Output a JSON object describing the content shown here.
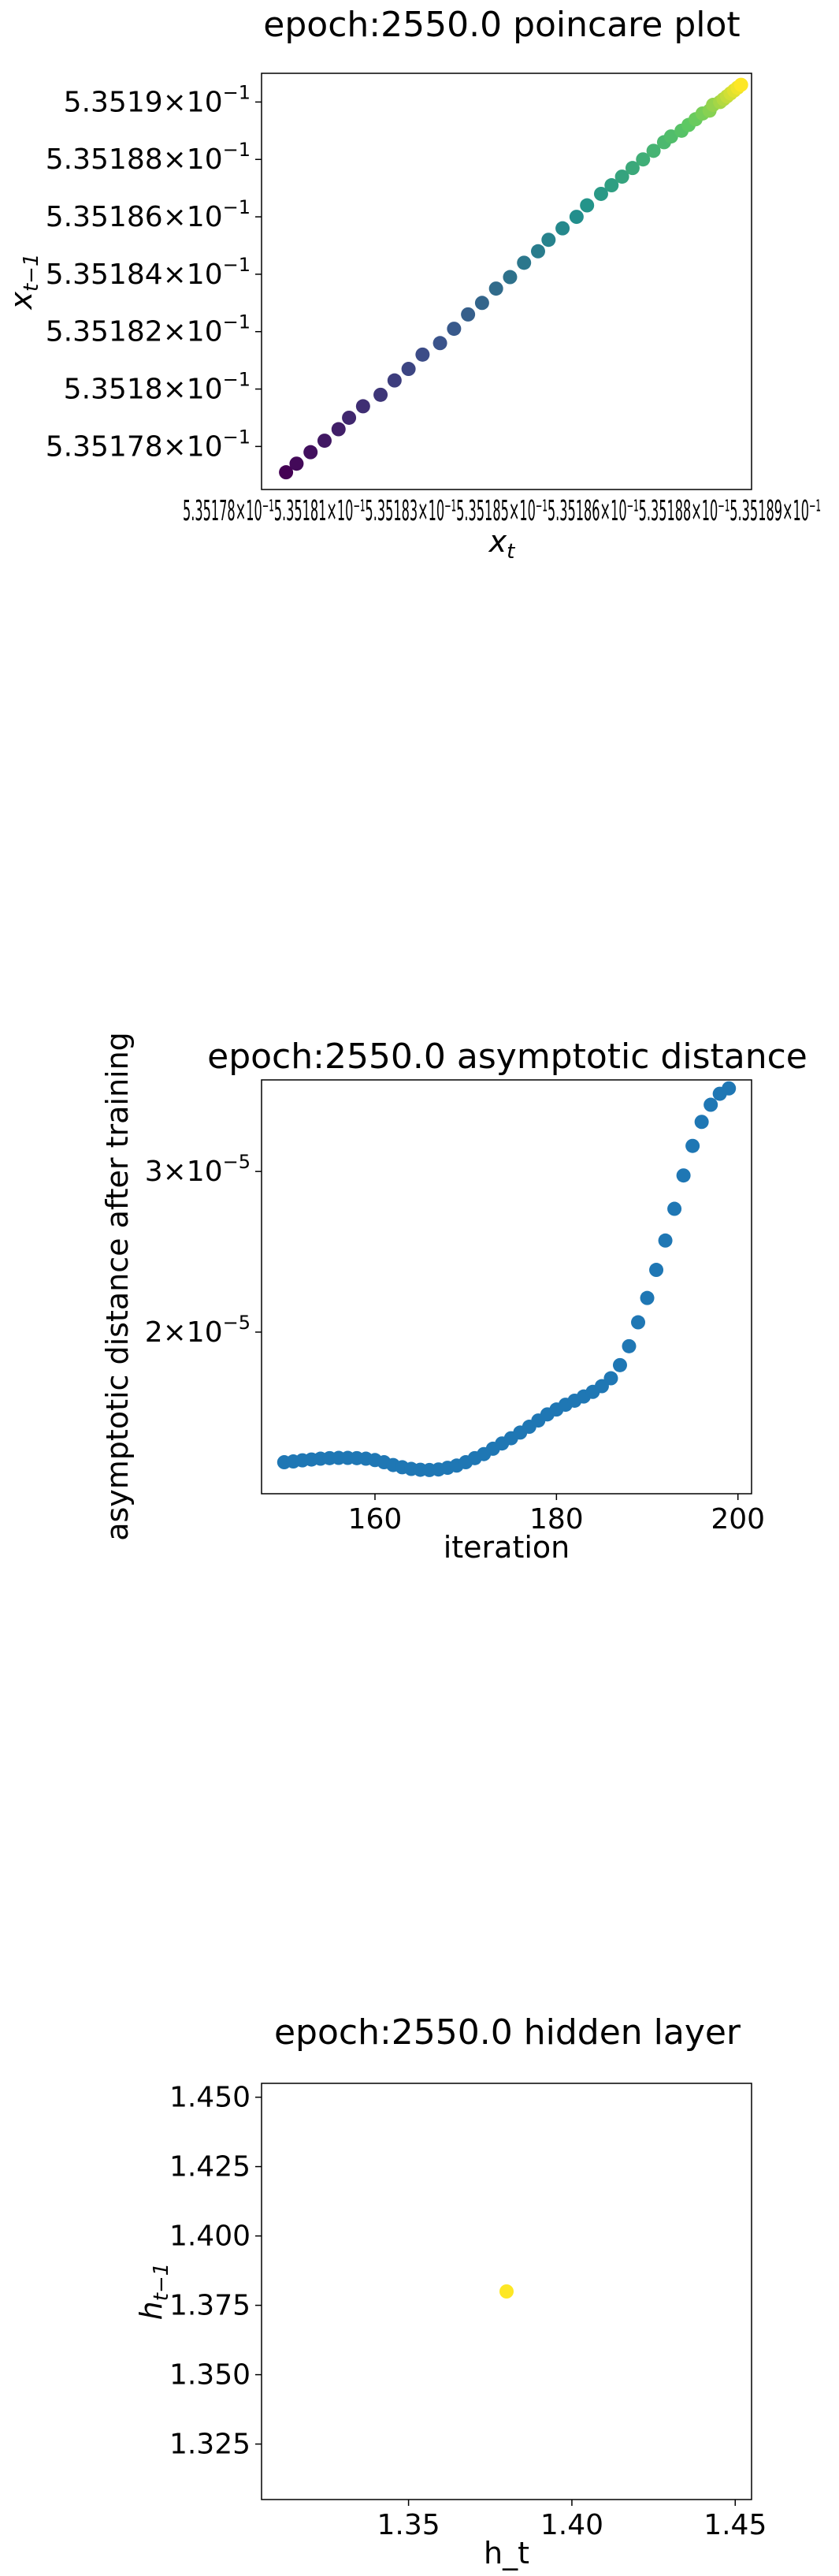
{
  "chart_data": [
    {
      "type": "scatter",
      "title": "epoch:2550.0 poincare plot",
      "xlabel_base": "x",
      "xlabel_sub": "t",
      "ylabel_base": "x",
      "ylabel_sub": "t−1",
      "colormap": [
        "#440154",
        "#3b528b",
        "#21918c",
        "#5ec962",
        "#fde725"
      ],
      "xlim": [
        0.5351772,
        0.5351912
      ],
      "ylim": [
        0.5351765,
        0.535191
      ],
      "x_ticks_text": "5.35178×10⁻¹5.35181×10⁻¹5.35183×10⁻¹5.35185×10⁻¹5.35186×10⁻¹5.35188×10⁻¹5.35189×10⁻¹",
      "y_ticks": [
        {
          "value": 0.53519,
          "mant": "5.3519",
          "exp": "−1"
        },
        {
          "value": 0.535188,
          "mant": "5.35188",
          "exp": "−1"
        },
        {
          "value": 0.535186,
          "mant": "5.35186",
          "exp": "−1"
        },
        {
          "value": 0.535184,
          "mant": "5.35184",
          "exp": "−1"
        },
        {
          "value": 0.535182,
          "mant": "5.35182",
          "exp": "−1"
        },
        {
          "value": 0.53518,
          "mant": "5.3518",
          "exp": "−1"
        },
        {
          "value": 0.535178,
          "mant": "5.35178",
          "exp": "−1"
        }
      ],
      "x": [
        0.5351779,
        0.5351782,
        0.5351786,
        0.535179,
        0.5351794,
        0.5351797,
        0.5351801,
        0.5351806,
        0.535181,
        0.5351814,
        0.5351818,
        0.5351823,
        0.5351827,
        0.5351831,
        0.5351835,
        0.5351839,
        0.5351843,
        0.5351847,
        0.5351851,
        0.5351854,
        0.5351858,
        0.5351862,
        0.5351865,
        0.5351869,
        0.5351872,
        0.5351875,
        0.5351878,
        0.5351881,
        0.5351884,
        0.5351887,
        0.5351889,
        0.5351892,
        0.5351894,
        0.5351896,
        0.5351898,
        0.53519,
        0.5351901,
        0.5351903,
        0.5351904,
        0.5351905,
        0.5351906,
        0.5351907,
        0.5351908,
        0.5351909
      ],
      "y": [
        0.5351771,
        0.5351774,
        0.5351778,
        0.5351782,
        0.5351786,
        0.535179,
        0.5351794,
        0.5351798,
        0.5351803,
        0.5351807,
        0.5351812,
        0.5351816,
        0.5351821,
        0.5351826,
        0.535183,
        0.5351835,
        0.5351839,
        0.5351844,
        0.5351848,
        0.5351852,
        0.5351856,
        0.535186,
        0.5351864,
        0.5351868,
        0.5351871,
        0.5351874,
        0.5351877,
        0.535188,
        0.5351883,
        0.5351886,
        0.5351888,
        0.535189,
        0.5351892,
        0.5351894,
        0.5351896,
        0.5351897,
        0.5351899,
        0.53519,
        0.5351901,
        0.5351902,
        0.5351903,
        0.5351904,
        0.5351905,
        0.5351906
      ]
    },
    {
      "type": "scatter",
      "title": "epoch:2550.0 asymptotic distance",
      "xlabel": "iteration",
      "ylabel": "asymptotic distance after training",
      "yscale": "log",
      "color": "#1f77b4",
      "xlim": [
        147.5,
        201.5
      ],
      "ylim": [
        1.33e-05,
        3.78e-05
      ],
      "x_ticks": [
        160,
        180,
        200
      ],
      "y_ticks": [
        {
          "value": 2e-05,
          "mant": "2×10",
          "exp": "−5"
        },
        {
          "value": 3e-05,
          "mant": "3×10",
          "exp": "−5"
        }
      ],
      "x": [
        150,
        151,
        152,
        153,
        154,
        155,
        156,
        157,
        158,
        159,
        160,
        161,
        162,
        163,
        164,
        165,
        166,
        167,
        168,
        169,
        170,
        171,
        172,
        173,
        174,
        175,
        176,
        177,
        178,
        179,
        180,
        181,
        182,
        183,
        184,
        185,
        186,
        187,
        188,
        189,
        190,
        191,
        192,
        193,
        194,
        195,
        196,
        197,
        198,
        199
      ],
      "y": [
        1.44e-05,
        1.443e-05,
        1.447e-05,
        1.45e-05,
        1.453e-05,
        1.455e-05,
        1.456e-05,
        1.456e-05,
        1.455e-05,
        1.453e-05,
        1.448e-05,
        1.44e-05,
        1.43e-05,
        1.422e-05,
        1.416e-05,
        1.413e-05,
        1.412e-05,
        1.414e-05,
        1.42e-05,
        1.428e-05,
        1.44e-05,
        1.455e-05,
        1.47e-05,
        1.49e-05,
        1.51e-05,
        1.53e-05,
        1.552e-05,
        1.575e-05,
        1.6e-05,
        1.625e-05,
        1.645e-05,
        1.665e-05,
        1.682e-05,
        1.7e-05,
        1.72e-05,
        1.745e-05,
        1.78e-05,
        1.84e-05,
        1.93e-05,
        2.05e-05,
        2.18e-05,
        2.34e-05,
        2.52e-05,
        2.73e-05,
        2.97e-05,
        3.2e-05,
        3.4e-05,
        3.55e-05,
        3.65e-05,
        3.7e-05
      ]
    },
    {
      "type": "scatter",
      "title": "epoch:2550.0 hidden layer",
      "xlabel": "h_t",
      "ylabel_base": "h",
      "ylabel_sub": "t−1",
      "color": "#fde725",
      "xlim": [
        1.305,
        1.455
      ],
      "ylim": [
        1.305,
        1.455
      ],
      "x_ticks": [
        {
          "value": 1.35,
          "label": "1.35"
        },
        {
          "value": 1.4,
          "label": "1.40"
        },
        {
          "value": 1.45,
          "label": "1.45"
        }
      ],
      "y_ticks": [
        {
          "value": 1.325,
          "label": "1.325"
        },
        {
          "value": 1.35,
          "label": "1.350"
        },
        {
          "value": 1.375,
          "label": "1.375"
        },
        {
          "value": 1.4,
          "label": "1.400"
        },
        {
          "value": 1.425,
          "label": "1.425"
        },
        {
          "value": 1.45,
          "label": "1.450"
        }
      ],
      "x": [
        1.38
      ],
      "y": [
        1.38
      ]
    }
  ]
}
